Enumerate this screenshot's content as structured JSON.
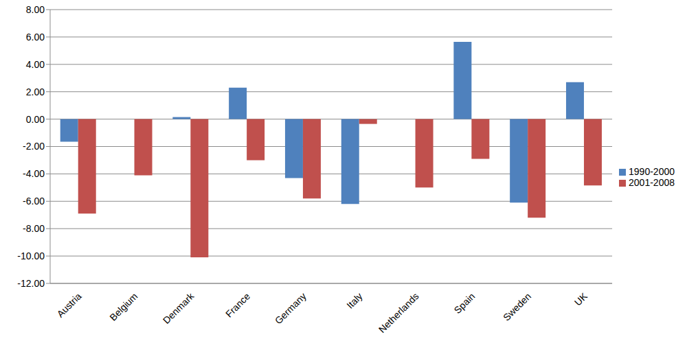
{
  "chart_data": {
    "type": "bar",
    "categories": [
      "Austria",
      "Belgium",
      "Denmark",
      "France",
      "Germany",
      "Italy",
      "Netherlands",
      "Spain",
      "Sweden",
      "UK"
    ],
    "series": [
      {
        "name": "1990-2000",
        "color": "#4f81bd",
        "values": [
          -1.65,
          0,
          0.15,
          2.3,
          -4.3,
          -6.2,
          0,
          5.65,
          -6.1,
          2.7
        ]
      },
      {
        "name": "2001-2008",
        "color": "#c0504d",
        "values": [
          -6.9,
          -4.1,
          -10.1,
          -3.0,
          -5.8,
          -0.35,
          -5.0,
          -2.9,
          -7.2,
          -4.85
        ]
      }
    ],
    "ylim": [
      -12,
      8
    ],
    "yticks": [
      {
        "value": -12,
        "label": "-12.00"
      },
      {
        "value": -10,
        "label": "-10.00"
      },
      {
        "value": -8,
        "label": "-8.00"
      },
      {
        "value": -6,
        "label": "-6.00"
      },
      {
        "value": -4,
        "label": "-4.00"
      },
      {
        "value": -2,
        "label": "-2.00"
      },
      {
        "value": 0,
        "label": "0.00"
      },
      {
        "value": 2,
        "label": "2.00"
      },
      {
        "value": 4,
        "label": "4.00"
      },
      {
        "value": 6,
        "label": "6.00"
      },
      {
        "value": 8,
        "label": "8.00"
      }
    ],
    "grid": true,
    "legend": "right"
  }
}
